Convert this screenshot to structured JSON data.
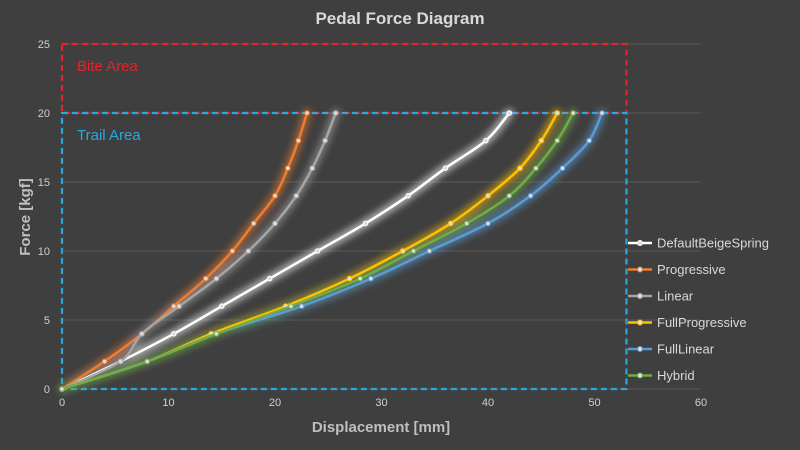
{
  "chart_data": {
    "type": "line",
    "title": "Pedal Force Diagram",
    "xlabel": "Displacement [mm]",
    "ylabel": "Force [kgf]",
    "xlim": [
      0,
      60
    ],
    "ylim": [
      0,
      25
    ],
    "xticks": [
      0,
      10,
      20,
      30,
      40,
      50,
      60
    ],
    "yticks": [
      0,
      5,
      10,
      15,
      20,
      25
    ],
    "grid": true,
    "legend_position": "right",
    "regions": [
      {
        "name": "Bite Area",
        "label": "Bite Area",
        "color": "#e8212a",
        "x": [
          0,
          53
        ],
        "y": [
          20,
          25
        ]
      },
      {
        "name": "Trail Area",
        "label": "Trail Area",
        "color": "#29a8e0",
        "x": [
          0,
          53
        ],
        "y": [
          0,
          20
        ]
      }
    ],
    "series": [
      {
        "name": "DefaultBeigeSpring",
        "color": "#ffffff",
        "x": [
          0,
          5.5,
          10.5,
          15,
          19.5,
          24,
          28.5,
          32.5,
          36,
          39.8,
          42
        ],
        "y": [
          0,
          2,
          4,
          6,
          8,
          10,
          12,
          14,
          16,
          18,
          20
        ]
      },
      {
        "name": "Progressive",
        "color": "#ed7d31",
        "x": [
          0,
          4,
          7.5,
          10.5,
          13.5,
          16,
          18,
          20,
          21.2,
          22.2,
          23
        ],
        "y": [
          0,
          2,
          4,
          6,
          8,
          10,
          12,
          14,
          16,
          18,
          20
        ]
      },
      {
        "name": "Linear",
        "color": "#a5a5a5",
        "x": [
          0,
          5.5,
          7.5,
          11,
          14.5,
          17.5,
          20,
          22,
          23.5,
          24.7,
          25.7
        ],
        "y": [
          0,
          2,
          4,
          6,
          8,
          10,
          12,
          14,
          16,
          18,
          20
        ]
      },
      {
        "name": "FullProgressive",
        "color": "#ffc000",
        "x": [
          0,
          8,
          14,
          21,
          27,
          32,
          36.5,
          40,
          43,
          45,
          46.5
        ],
        "y": [
          0,
          2,
          4,
          6,
          8,
          10,
          12,
          14,
          16,
          18,
          20
        ]
      },
      {
        "name": "FullLinear",
        "color": "#5b9bd5",
        "x": [
          0,
          8,
          14.5,
          22.5,
          29,
          34.5,
          40,
          44,
          47,
          49.5,
          50.7
        ],
        "y": [
          0,
          2,
          4,
          6,
          8,
          10,
          12,
          14,
          16,
          18,
          20
        ]
      },
      {
        "name": "Hybrid",
        "color": "#70ad47",
        "x": [
          0,
          8,
          14.5,
          21.5,
          28,
          33,
          38,
          42,
          44.5,
          46.5,
          48
        ],
        "y": [
          0,
          2,
          4,
          6,
          8,
          10,
          12,
          14,
          16,
          18,
          20
        ]
      }
    ]
  }
}
